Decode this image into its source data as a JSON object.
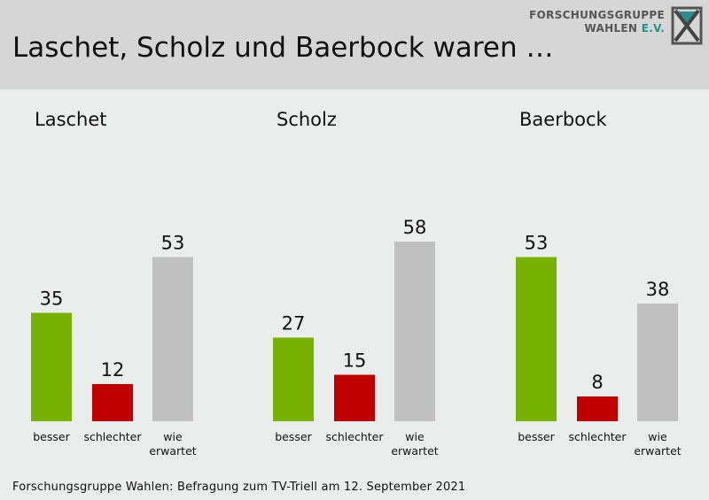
{
  "header": {
    "title": "Laschet, Scholz und Baerbock waren …",
    "logo_line1": "FORSCHUNGSGRUPPE",
    "logo_line2": "WAHLEN",
    "logo_ev": "E.V."
  },
  "footer": {
    "source": "Forschungsgruppe  Wahlen: Befragung zum TV-Triell am 12. September 2021"
  },
  "colors": {
    "besser": "#77b200",
    "schlechter": "#c00000",
    "wie_erwartet": "#c0c0c0"
  },
  "chart_data": {
    "type": "bar",
    "categories": [
      "besser",
      "schlechter",
      "wie erwartet"
    ],
    "panels": [
      {
        "title": "Laschet",
        "values": [
          35,
          12,
          53
        ]
      },
      {
        "title": "Scholz",
        "values": [
          27,
          15,
          58
        ]
      },
      {
        "title": "Baerbock",
        "values": [
          53,
          8,
          38
        ]
      }
    ]
  }
}
